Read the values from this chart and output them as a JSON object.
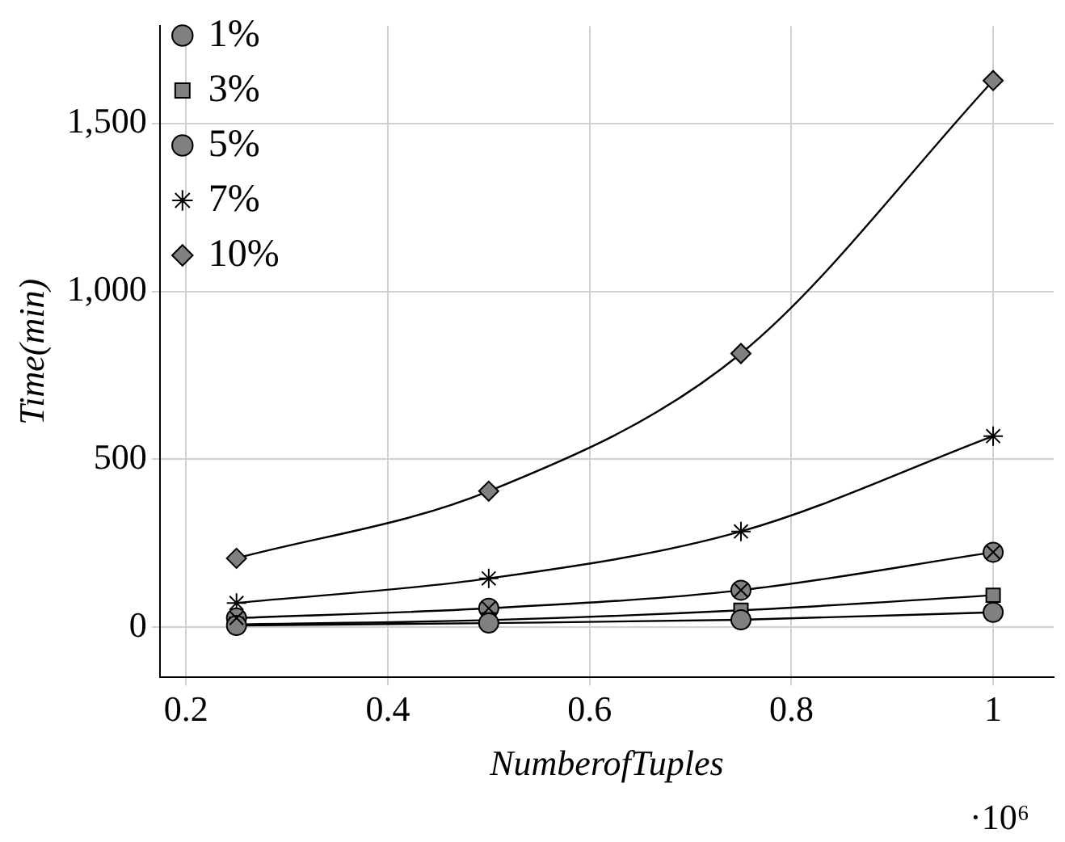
{
  "chart_data": {
    "type": "line",
    "xlabel": "NumberofTuples",
    "ylabel": "Time(min)",
    "annotations": [
      "·10⁶"
    ],
    "x": [
      0.25,
      0.5,
      0.75,
      1
    ],
    "xlim": [
      0.174,
      1.06
    ],
    "xticks": [
      0.2,
      0.4,
      0.6,
      0.8,
      1
    ],
    "ylim": [
      -150,
      1790
    ],
    "yticks": [
      0,
      500,
      {
        "value": 1000,
        "label": "1,000"
      },
      {
        "value": 1500,
        "label": "1,500"
      }
    ],
    "grid": true,
    "legend": "top left",
    "series": [
      {
        "name": "1%",
        "color": "#000000",
        "marker": "circle",
        "values": [
          5,
          12,
          22,
          44
        ]
      },
      {
        "name": "3%",
        "color": "#000000",
        "marker": "square",
        "values": [
          8,
          21,
          50,
          95
        ]
      },
      {
        "name": "5%",
        "color": "#000000",
        "marker": "circle",
        "values": [
          27,
          56,
          110,
          223
        ]
      },
      {
        "name": "7%",
        "color": "#000000",
        "marker": "cross",
        "values": [
          72,
          145,
          285,
          569
        ]
      },
      {
        "name": "10%",
        "color": "#000000",
        "marker": "diamond",
        "values": [
          205,
          405,
          815,
          1628
        ]
      }
    ]
  }
}
